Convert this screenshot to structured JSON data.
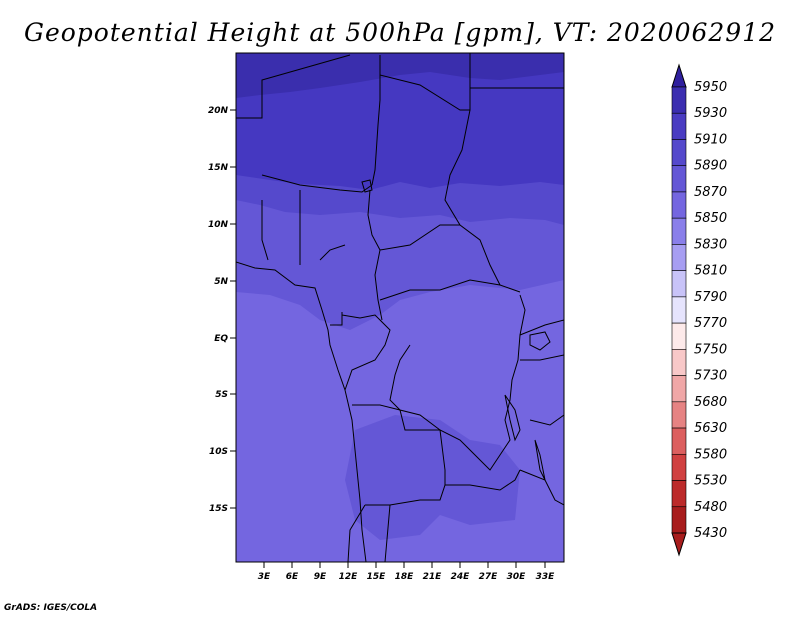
{
  "title": "Geopotential Height at 500hPa [gpm], VT: 2020062912",
  "footer": "GrADS: IGES/COLA",
  "map": {
    "lon_range": [
      0,
      35
    ],
    "lat_range": [
      -20,
      25
    ],
    "lon_ticks": [
      "3E",
      "6E",
      "9E",
      "12E",
      "15E",
      "18E",
      "21E",
      "24E",
      "27E",
      "30E",
      "33E"
    ],
    "lat_ticks": [
      "20N",
      "15N",
      "10N",
      "5N",
      "EQ",
      "5S",
      "10S",
      "15S"
    ]
  },
  "colorbar": {
    "levels": [
      "5950",
      "5930",
      "5910",
      "5890",
      "5870",
      "5850",
      "5830",
      "5810",
      "5790",
      "5770",
      "5750",
      "5730",
      "5680",
      "5630",
      "5580",
      "5530",
      "5480",
      "5430"
    ],
    "colors": [
      "#2f1f9e",
      "#3b2eb0",
      "#4a3cc2",
      "#5549cc",
      "#6457d6",
      "#7466e0",
      "#8a7fea",
      "#a79ef2",
      "#c8c3f8",
      "#e6e4fd",
      "#fdeaea",
      "#f8c8c8",
      "#f0a7a7",
      "#e68383",
      "#dc5f5f",
      "#d04040",
      "#bc2a2a",
      "#a81d1d"
    ]
  },
  "colors": {
    "band_5930": "#3a2ead",
    "band_5910": "#4538c1",
    "band_5890": "#5549cc",
    "band_5870": "#6457d6",
    "band_5850": "#7466e0",
    "land_border": "#000000"
  }
}
